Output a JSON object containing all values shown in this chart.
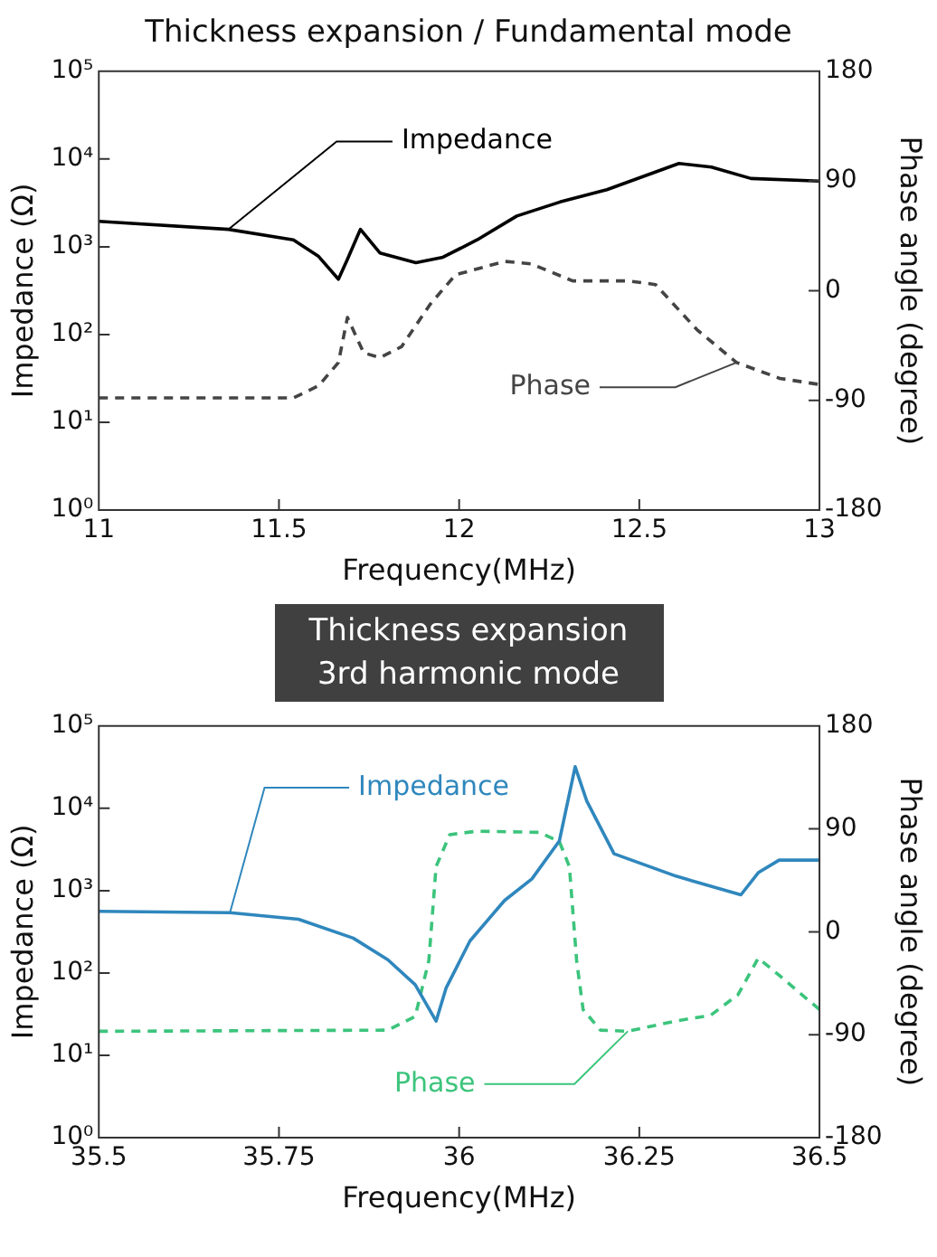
{
  "chart_data": [
    {
      "type": "line",
      "title": "Thickness expansion / Fundamental mode",
      "xlabel": "Frequency(MHz)",
      "ylabel": "Impedance (Ω)",
      "y2label": "Phase angle (degree)",
      "log": "y",
      "legend": false,
      "grid": false,
      "marker": "none",
      "xlim": [
        11,
        13
      ],
      "xticks": [
        11,
        11.5,
        12,
        12.5,
        13
      ],
      "ylim": [
        1,
        100000
      ],
      "yticks": [
        {
          "value": 1,
          "label": "10⁰"
        },
        {
          "value": 10,
          "label": "10¹"
        },
        {
          "value": 100,
          "label": "10²"
        },
        {
          "value": 1000,
          "label": "10³"
        },
        {
          "value": 10000,
          "label": "10⁴"
        },
        {
          "value": 100000,
          "label": "10⁵"
        }
      ],
      "y2lim": [
        -180,
        180
      ],
      "y2ticks": [
        -180,
        -90,
        0,
        90,
        180
      ],
      "series": [
        {
          "name": "Impedance",
          "color": "#000000",
          "line_style": "solid",
          "axis": "y",
          "x": [
            11,
            11.36,
            11.54,
            11.61,
            11.665,
            11.69,
            11.726,
            11.78,
            11.88,
            11.955,
            12.05,
            12.16,
            12.28,
            12.41,
            12.51,
            12.61,
            12.7,
            12.81,
            13
          ],
          "values": [
            1950,
            1580,
            1200,
            775,
            427,
            720,
            1580,
            850,
            660,
            760,
            1200,
            2240,
            3240,
            4470,
            6300,
            8900,
            8100,
            6000,
            5600
          ]
        },
        {
          "name": "Phase",
          "color": "#444444",
          "line_style": "dashed",
          "axis": "y2",
          "x": [
            11,
            11.54,
            11.61,
            11.665,
            11.69,
            11.735,
            11.78,
            11.84,
            11.92,
            11.99,
            12.126,
            12.2,
            12.315,
            12.47,
            12.545,
            12.66,
            12.77,
            12.89,
            13
          ],
          "values": [
            -88,
            -88,
            -78,
            -59,
            -22,
            -51,
            -55,
            -46,
            -11,
            13,
            24,
            22,
            8,
            8,
            5,
            -32,
            -59,
            -72,
            -77
          ]
        }
      ]
    },
    {
      "type": "line",
      "title": "Thickness expansion 3rd harmonic mode",
      "xlabel": "Frequency(MHz)",
      "ylabel": "Impedance (Ω)",
      "y2label": "Phase angle (degree)",
      "log": "y",
      "legend": false,
      "grid": false,
      "marker": "none",
      "xlim": [
        35.5,
        36.5
      ],
      "xticks": [
        35.5,
        35.75,
        36,
        36.25,
        36.5
      ],
      "ylim": [
        1,
        100000
      ],
      "yticks": [
        {
          "value": 1,
          "label": "10⁰"
        },
        {
          "value": 10,
          "label": "10¹"
        },
        {
          "value": 100,
          "label": "10²"
        },
        {
          "value": 1000,
          "label": "10³"
        },
        {
          "value": 10000,
          "label": "10⁴"
        },
        {
          "value": 100000,
          "label": "10⁵"
        }
      ],
      "y2lim": [
        -180,
        180
      ],
      "y2ticks": [
        -180,
        -90,
        0,
        90,
        180
      ],
      "series": [
        {
          "name": "Impedance",
          "color": "#2f87bd",
          "line_style": "solid",
          "axis": "y",
          "x": [
            35.5,
            35.682,
            35.777,
            35.853,
            35.901,
            35.939,
            35.968,
            35.982,
            36.015,
            36.063,
            36.101,
            36.139,
            36.161,
            36.177,
            36.215,
            36.301,
            36.391,
            36.415,
            36.444,
            36.5
          ],
          "values": [
            560,
            540,
            450,
            265,
            145,
            72,
            26,
            66,
            245,
            760,
            1390,
            4000,
            32000,
            12300,
            2800,
            1500,
            890,
            1650,
            2350,
            2350
          ]
        },
        {
          "name": "Phase",
          "color": "#3cc47c",
          "line_style": "dashed",
          "axis": "y2",
          "x": [
            35.5,
            35.901,
            35.939,
            35.958,
            35.968,
            35.987,
            36.025,
            36.111,
            36.139,
            36.153,
            36.163,
            36.172,
            36.196,
            36.234,
            36.301,
            36.349,
            36.387,
            36.415,
            36.444,
            36.5
          ],
          "values": [
            -87,
            -86,
            -74,
            -25,
            57,
            85,
            88,
            87,
            79,
            57,
            -25,
            -68,
            -86,
            -87,
            -78,
            -73,
            -55,
            -23,
            -38,
            -68
          ]
        }
      ]
    }
  ]
}
